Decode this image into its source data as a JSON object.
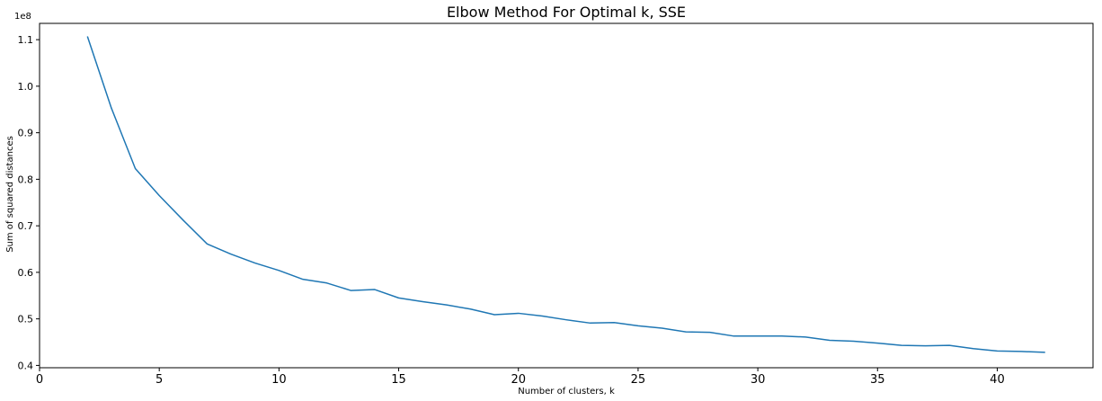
{
  "chart_data": {
    "type": "line",
    "title": "Elbow Method For Optimal k, SSE",
    "xlabel": "Number of clusters, k",
    "ylabel": "Sum of squared distances",
    "y_multiplier_label": "1e8",
    "xlim": [
      0,
      44
    ],
    "ylim": [
      0.395,
      1.135
    ],
    "x_ticks": [
      0,
      5,
      10,
      15,
      20,
      25,
      30,
      35,
      40
    ],
    "y_ticks": [
      0.4,
      0.5,
      0.6,
      0.7,
      0.8,
      0.9,
      1.0,
      1.1
    ],
    "y_tick_labels": [
      "0.4",
      "0.5",
      "0.6",
      "0.7",
      "0.8",
      "0.9",
      "1.0",
      "1.1"
    ],
    "grid": false,
    "line_color": "#1f77b4",
    "x": [
      2,
      3,
      4,
      5,
      6,
      7,
      8,
      9,
      10,
      11,
      12,
      13,
      14,
      15,
      16,
      17,
      18,
      19,
      20,
      21,
      22,
      23,
      24,
      25,
      26,
      27,
      28,
      29,
      30,
      31,
      32,
      33,
      34,
      35,
      36,
      37,
      38,
      39,
      40,
      41,
      42
    ],
    "y": [
      1.107,
      0.953,
      0.823,
      0.765,
      0.712,
      0.661,
      0.639,
      0.62,
      0.604,
      0.585,
      0.577,
      0.561,
      0.563,
      0.545,
      0.537,
      0.53,
      0.521,
      0.509,
      0.512,
      0.506,
      0.498,
      0.491,
      0.492,
      0.485,
      0.48,
      0.472,
      0.471,
      0.463,
      0.463,
      0.463,
      0.461,
      0.454,
      0.452,
      0.448,
      0.443,
      0.442,
      0.443,
      0.436,
      0.431,
      0.43,
      0.428
    ]
  }
}
